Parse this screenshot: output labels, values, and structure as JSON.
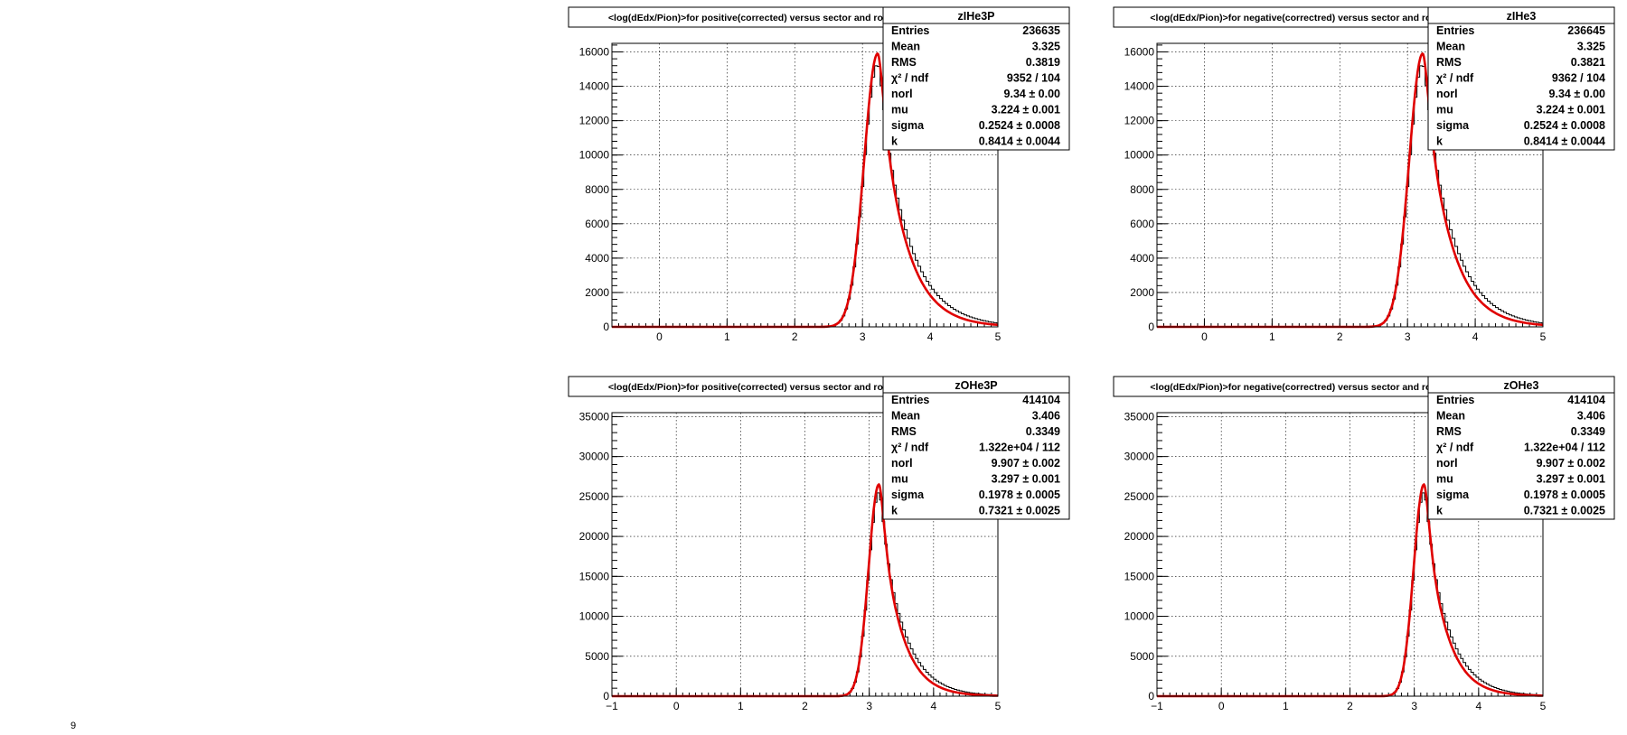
{
  "chart_data": [
    {
      "type": "histogram",
      "id": "zIHe3P",
      "title": "<log(dEdx/Pion)>for positive(corrected) versus sector and row",
      "xlim": [
        -0.7,
        5
      ],
      "ylim": [
        0,
        16500
      ],
      "xticks": [
        0,
        1,
        2,
        3,
        4,
        5
      ],
      "xtick_labels": [
        "0",
        "1",
        "2",
        "3",
        "4",
        "5"
      ],
      "yticks": [
        0,
        2000,
        4000,
        6000,
        8000,
        10000,
        12000,
        14000,
        16000
      ],
      "ytick_labels": [
        "0",
        "2000",
        "4000",
        "6000",
        "8000",
        "10000",
        "12000",
        "14000",
        "16000"
      ],
      "grid": true,
      "stats": {
        "name": "zIHe3P",
        "rows": [
          {
            "label": "Entries",
            "value": "236635"
          },
          {
            "label": "Mean",
            "value": "3.325"
          },
          {
            "label": "RMS",
            "value": "0.3819"
          },
          {
            "label": "χ² / ndf",
            "value": "9352 / 104"
          },
          {
            "label": "norl",
            "value": "9.34 ± 0.00"
          },
          {
            "label": "mu",
            "value": "3.224 ± 0.001"
          },
          {
            "label": "sigma",
            "value": "0.2524 ± 0.0008"
          },
          {
            "label": "k",
            "value": "0.8414 ± 0.0044"
          }
        ]
      },
      "peak": {
        "x": 3.224,
        "y": 15900
      },
      "shape": {
        "left_sigma": 0.2,
        "right_tau": 0.36,
        "hist_right_tau": 0.42,
        "hist_peak_y": 15300
      }
    },
    {
      "type": "histogram",
      "id": "zIHe3",
      "title": "<log(dEdx/Pion)>for negative(correctred) versus sector and row",
      "xlim": [
        -0.7,
        5
      ],
      "ylim": [
        0,
        16500
      ],
      "xticks": [
        0,
        1,
        2,
        3,
        4,
        5
      ],
      "xtick_labels": [
        "0",
        "1",
        "2",
        "3",
        "4",
        "5"
      ],
      "yticks": [
        0,
        2000,
        4000,
        6000,
        8000,
        10000,
        12000,
        14000,
        16000
      ],
      "ytick_labels": [
        "0",
        "2000",
        "4000",
        "6000",
        "8000",
        "10000",
        "12000",
        "14000",
        "16000"
      ],
      "grid": true,
      "stats": {
        "name": "zIHe3",
        "rows": [
          {
            "label": "Entries",
            "value": "236645"
          },
          {
            "label": "Mean",
            "value": "3.325"
          },
          {
            "label": "RMS",
            "value": "0.3821"
          },
          {
            "label": "χ² / ndf",
            "value": "9362 / 104"
          },
          {
            "label": "norl",
            "value": "9.34 ± 0.00"
          },
          {
            "label": "mu",
            "value": "3.224 ± 0.001"
          },
          {
            "label": "sigma",
            "value": "0.2524 ± 0.0008"
          },
          {
            "label": "k",
            "value": "0.8414 ± 0.0044"
          }
        ]
      },
      "peak": {
        "x": 3.224,
        "y": 15900
      },
      "shape": {
        "left_sigma": 0.2,
        "right_tau": 0.36,
        "hist_right_tau": 0.42,
        "hist_peak_y": 15300
      }
    },
    {
      "type": "histogram",
      "id": "zOHe3P",
      "title": "<log(dEdx/Pion)>for positive(corrected) versus sector and row",
      "xlim": [
        -1,
        5
      ],
      "ylim": [
        0,
        35500
      ],
      "xticks": [
        -1,
        0,
        1,
        2,
        3,
        4,
        5
      ],
      "xtick_labels": [
        "−1",
        "0",
        "1",
        "2",
        "3",
        "4",
        "5"
      ],
      "yticks": [
        0,
        5000,
        10000,
        15000,
        20000,
        25000,
        30000,
        35000
      ],
      "ytick_labels": [
        "0",
        "5000",
        "10000",
        "15000",
        "20000",
        "25000",
        "30000",
        "35000"
      ],
      "grid": true,
      "stats": {
        "name": "zOHe3P",
        "rows": [
          {
            "label": "Entries",
            "value": "414104"
          },
          {
            "label": "Mean",
            "value": "3.406"
          },
          {
            "label": "RMS",
            "value": "0.3349"
          },
          {
            "label": "χ² / ndf",
            "value": "1.322e+04 / 112"
          },
          {
            "label": "norl",
            "value": "9.907 ± 0.002"
          },
          {
            "label": "mu",
            "value": "3.297 ± 0.001"
          },
          {
            "label": "sigma",
            "value": "0.1978 ± 0.0005"
          },
          {
            "label": "k",
            "value": "0.7321 ± 0.0025"
          }
        ]
      },
      "peak": {
        "x": 3.15,
        "y": 26500
      },
      "shape": {
        "left_sigma": 0.16,
        "right_tau": 0.3,
        "hist_right_tau": 0.35,
        "hist_peak_y": 25500
      }
    },
    {
      "type": "histogram",
      "id": "zOHe3",
      "title": "<log(dEdx/Pion)>for negative(correctred) versus sector and row",
      "xlim": [
        -1,
        5
      ],
      "ylim": [
        0,
        35500
      ],
      "xticks": [
        -1,
        0,
        1,
        2,
        3,
        4,
        5
      ],
      "xtick_labels": [
        "−1",
        "0",
        "1",
        "2",
        "3",
        "4",
        "5"
      ],
      "yticks": [
        0,
        5000,
        10000,
        15000,
        20000,
        25000,
        30000,
        35000
      ],
      "ytick_labels": [
        "0",
        "5000",
        "10000",
        "15000",
        "20000",
        "25000",
        "30000",
        "35000"
      ],
      "grid": true,
      "stats": {
        "name": "zOHe3",
        "rows": [
          {
            "label": "Entries",
            "value": "414104"
          },
          {
            "label": "Mean",
            "value": "3.406"
          },
          {
            "label": "RMS",
            "value": "0.3349"
          },
          {
            "label": "χ² / ndf",
            "value": "1.322e+04 / 112"
          },
          {
            "label": "norl",
            "value": "9.907 ± 0.002"
          },
          {
            "label": "mu",
            "value": "3.297 ± 0.001"
          },
          {
            "label": "sigma",
            "value": "0.1978 ± 0.0005"
          },
          {
            "label": "k",
            "value": "0.7321 ± 0.0025"
          }
        ]
      },
      "peak": {
        "x": 3.15,
        "y": 26500
      },
      "shape": {
        "left_sigma": 0.16,
        "right_tau": 0.3,
        "hist_right_tau": 0.35,
        "hist_peak_y": 25500
      }
    }
  ],
  "corner_mark": "9"
}
